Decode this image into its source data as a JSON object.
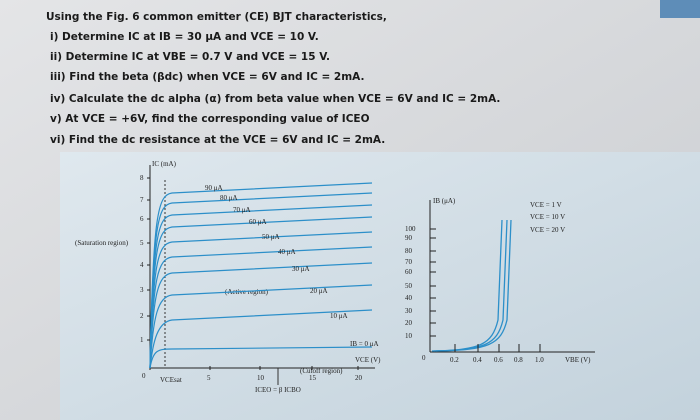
{
  "question": {
    "intro": "Using the Fig. 6 common emitter (CE) BJT characteristics,",
    "items": [
      "i) Determine IC at IB = 30 μA and VCE = 10 V.",
      "ii) Determine IC at VBE = 0.7 V and VCE = 15 V.",
      "iii) Find the beta (βdc) when VCE = 6V and IC = 2mA.",
      "iv) Calculate the dc alpha (α) from beta value when VCE = 6V and IC = 2mA.",
      "v) At VCE = +6V, find the corresponding value of ICEO",
      "vi) Find the dc resistance at the VCE = 6V and IC = 2mA."
    ]
  },
  "figure_left": {
    "y_axis_label": "IC (mA)",
    "y_ticks": [
      "8",
      "7",
      "6",
      "5",
      "4",
      "3",
      "2",
      "1"
    ],
    "origin": "0",
    "x_ticks": [
      "5",
      "10",
      "15",
      "20"
    ],
    "x_axis_label": "VCE (V)",
    "curve_labels": [
      "90 μA",
      "80 μA",
      "70 μA",
      "60 μA",
      "50 μA",
      "40 μA",
      "30 μA",
      "20 μA",
      "10 μA"
    ],
    "zero_label": "IB = 0 μA",
    "saturation": "(Saturation region)",
    "active": "(Active region)",
    "cutoff": "(Cutoff region)",
    "vce_sat": "VCEsat",
    "iceo": "ICEO = β ICBO"
  },
  "figure_right": {
    "y_axis_label": "IB (μA)",
    "y_ticks": [
      "100",
      "90",
      "80",
      "70",
      "60",
      "50",
      "40",
      "30",
      "20",
      "10"
    ],
    "origin": "0",
    "x_ticks": [
      "0.2",
      "0.4",
      "0.6",
      "0.8",
      "1.0"
    ],
    "x_axis_label": "VBE (V)",
    "curve_labels": [
      "VCE = 1 V",
      "VCE = 10 V",
      "VCE = 20 V"
    ]
  }
}
